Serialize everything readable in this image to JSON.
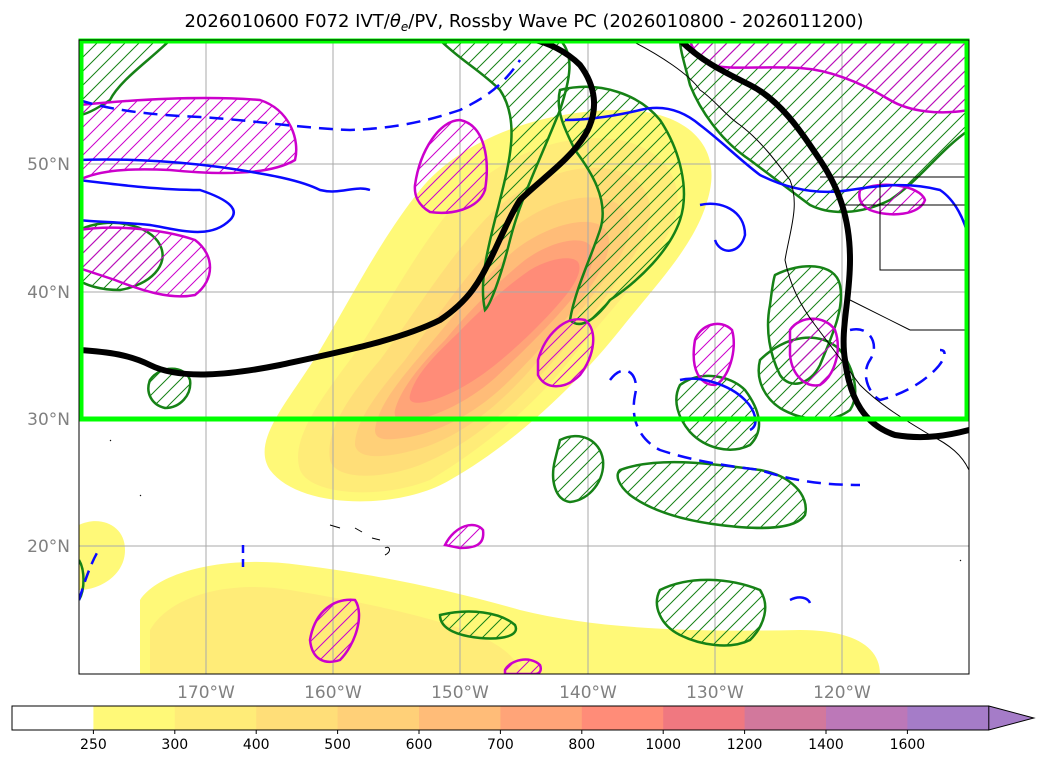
{
  "chart_data": {
    "type": "map",
    "title": "2026010600 F072 IVT/θe/PV, Rossby Wave PC (2026010800 - 2026011200)",
    "title_parts": {
      "prefix": "2026010600 F072 IVT/",
      "theta": "θ",
      "theta_sub": "e",
      "suffix": "/PV, Rossby Wave PC (2026010800 - 2026011200)"
    },
    "extent": {
      "lon": [
        -180,
        -110
      ],
      "lat": [
        10,
        60
      ]
    },
    "grid": true,
    "lat_ticks": [
      {
        "value": 50,
        "label": "50°N"
      },
      {
        "value": 40,
        "label": "40°N"
      },
      {
        "value": 30,
        "label": "30°N"
      },
      {
        "value": 20,
        "label": "20°N"
      }
    ],
    "lon_ticks": [
      {
        "value": -170,
        "label": "170°W"
      },
      {
        "value": -160,
        "label": "160°W"
      },
      {
        "value": -150,
        "label": "150°W"
      },
      {
        "value": -140,
        "label": "140°W"
      },
      {
        "value": -130,
        "label": "130°W"
      },
      {
        "value": -120,
        "label": "120°W"
      }
    ],
    "highlight_box": {
      "lon": [
        -180,
        -110
      ],
      "lat": [
        30,
        60
      ],
      "color": "#00ff00"
    },
    "colorbar": {
      "levels": [
        "250",
        "300",
        "400",
        "500",
        "600",
        "700",
        "800",
        "1000",
        "1200",
        "1400",
        "1600"
      ],
      "colors": [
        "#ffffff",
        "#fff978",
        "#ffec78",
        "#ffde78",
        "#ffd078",
        "#ffbc78",
        "#ffa478",
        "#ff8c78",
        "#f07880",
        "#d2789c",
        "#bc78b8",
        "#a57cc8"
      ],
      "extend": "max"
    },
    "contour_colors": {
      "theta_e": "#0a0aff",
      "pv": "#cc00cc",
      "wave": "#168216",
      "jet": "#000000"
    }
  }
}
